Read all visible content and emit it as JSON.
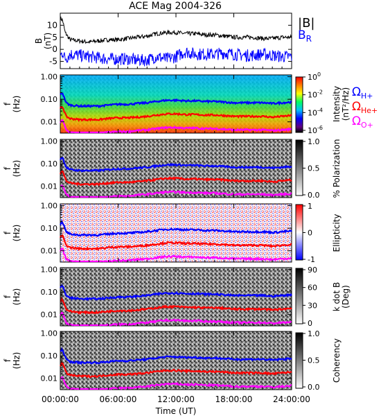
{
  "title": "ACE Mag 2004-326",
  "colors": {
    "B_total": "#000000",
    "B_R": "#0000ff",
    "H_plus": "#0000ff",
    "He_plus": "#ff0000",
    "O_plus": "#ff00ff"
  },
  "chart_data": [
    {
      "type": "line",
      "panel": "B",
      "ylabel": "B",
      "yunits": "(nT)",
      "yticks": [
        "10",
        "5",
        "0",
        "-5"
      ],
      "ylim": [
        -8,
        15
      ],
      "series": [
        {
          "name": "|B|",
          "x": [
            0,
            0.25,
            0.5,
            1,
            2,
            3,
            4,
            5,
            6,
            7,
            8,
            9,
            10,
            11,
            12,
            13,
            14,
            15,
            16,
            17,
            18,
            19,
            20,
            21,
            22,
            23,
            24
          ],
          "values": [
            13,
            12,
            7,
            4,
            3.5,
            3,
            3.5,
            4,
            4,
            4.5,
            5,
            5.5,
            6.5,
            7,
            7,
            6.5,
            6.5,
            6,
            6,
            5.5,
            5,
            5,
            5,
            4.5,
            4.5,
            5,
            5
          ]
        },
        {
          "name": "B",
          "sub": "R",
          "x": [
            0,
            0.25,
            0.5,
            1,
            2,
            3,
            4,
            5,
            6,
            7,
            8,
            9,
            10,
            11,
            12,
            13,
            14,
            15,
            16,
            17,
            18,
            19,
            20,
            21,
            22,
            23,
            24
          ],
          "values": [
            -3,
            -1,
            -4,
            -2,
            -2.5,
            -3,
            -3.5,
            -4,
            -4,
            -4,
            -4.5,
            -4.5,
            -3,
            -4,
            -3,
            -1,
            -2,
            -2,
            -2,
            -1.5,
            -2,
            -2.5,
            -2.5,
            -2,
            -2.5,
            -3,
            -3
          ]
        }
      ]
    },
    {
      "type": "heatmap",
      "panel": "intensity",
      "ylabel": "f",
      "yunits": "(Hz)",
      "yticks": [
        "1.00",
        "0.10",
        "0.01"
      ],
      "colorbar_label": "Intensity",
      "colorbar_units": "(nT²/Hz)",
      "colorbar_ticks": [
        {
          "base": "10",
          "exp": "0"
        },
        {
          "base": "10",
          "exp": "-2"
        },
        {
          "base": "10",
          "exp": "-4"
        },
        {
          "base": "10",
          "exp": "-6"
        }
      ]
    },
    {
      "type": "heatmap",
      "panel": "polarization",
      "ylabel": "f",
      "yunits": "(Hz)",
      "yticks": [
        "1.00",
        "0.10",
        "0.01"
      ],
      "colorbar_label": "% Polarization",
      "colorbar_ticks": [
        "1.0",
        "0.5",
        "0.0"
      ]
    },
    {
      "type": "heatmap",
      "panel": "ellipticity",
      "ylabel": "f",
      "yunits": "(Hz)",
      "yticks": [
        "1.00",
        "0.10",
        "0.01"
      ],
      "colorbar_label": "Ellipticity",
      "colorbar_ticks": [
        "1",
        "0",
        "-1"
      ]
    },
    {
      "type": "heatmap",
      "panel": "kdotb",
      "ylabel": "f",
      "yunits": "(Hz)",
      "yticks": [
        "1.00",
        "0.10",
        "0.01"
      ],
      "colorbar_label": "k dot B",
      "colorbar_units": "(Deg)",
      "colorbar_ticks": [
        "90",
        "60",
        "30",
        "0"
      ]
    },
    {
      "type": "heatmap",
      "panel": "coherency",
      "ylabel": "f",
      "yunits": "(Hz)",
      "yticks": [
        "1.00",
        "0.10",
        "0.01"
      ],
      "colorbar_label": "Coherency",
      "colorbar_ticks": [
        "1.0",
        "0.5",
        "0.0"
      ]
    }
  ],
  "gyrofrequency_lines": {
    "x": [
      0,
      0.2,
      0.4,
      0.6,
      1,
      2,
      3,
      4,
      5,
      6,
      7,
      8,
      9,
      10,
      11,
      12,
      13,
      14,
      15,
      16,
      17,
      18,
      19,
      20,
      21,
      22,
      23,
      24
    ],
    "H_plus_hz": [
      0.15,
      0.2,
      0.12,
      0.07,
      0.055,
      0.05,
      0.05,
      0.05,
      0.055,
      0.06,
      0.06,
      0.065,
      0.07,
      0.08,
      0.09,
      0.09,
      0.085,
      0.085,
      0.08,
      0.08,
      0.075,
      0.07,
      0.07,
      0.07,
      0.07,
      0.065,
      0.07,
      0.075
    ],
    "He_plus_hz": [
      0.0375,
      0.05,
      0.03,
      0.0175,
      0.014,
      0.0125,
      0.0125,
      0.0125,
      0.014,
      0.015,
      0.015,
      0.016,
      0.0175,
      0.02,
      0.0225,
      0.0225,
      0.021,
      0.021,
      0.02,
      0.02,
      0.019,
      0.0175,
      0.0175,
      0.0175,
      0.0175,
      0.016,
      0.0175,
      0.019
    ],
    "O_plus_hz": [
      0.0094,
      0.0125,
      0.0075,
      0.0044,
      0.0034,
      0.0031,
      0.0031,
      0.0031,
      0.0034,
      0.0037,
      0.0037,
      0.0041,
      0.0044,
      0.005,
      0.0056,
      0.0056,
      0.0053,
      0.0053,
      0.005,
      0.005,
      0.0047,
      0.0044,
      0.0044,
      0.0044,
      0.0044,
      0.0041,
      0.0044,
      0.0047
    ]
  },
  "legend": {
    "B_total": "|B|",
    "B_R": "B",
    "B_R_sub": "R",
    "omega": "Ω",
    "H_sub": "H+",
    "He_sub": "He+",
    "O_sub": "O+"
  },
  "x_axis": {
    "ticks": [
      "00:00:00",
      "06:00:00",
      "12:00:00",
      "18:00:00",
      "24:00:00"
    ],
    "label": "Time (UT)"
  }
}
